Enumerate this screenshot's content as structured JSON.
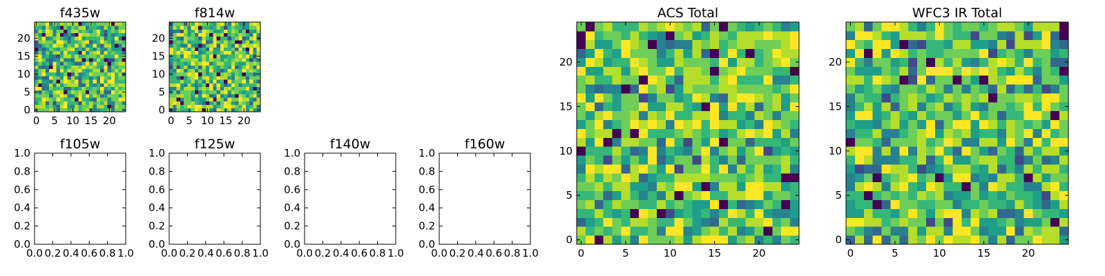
{
  "colors": {
    "background": "#ffffff",
    "axes": "#000000",
    "colormap": "viridis"
  },
  "chart_data": [
    {
      "id": "f435w",
      "type": "heatmap",
      "title": "f435w",
      "grid_size": 25,
      "xlim": [
        -0.5,
        24.5
      ],
      "ylim": [
        -0.5,
        24.5
      ],
      "xticks": [
        0,
        5,
        10,
        15,
        20
      ],
      "yticks": [
        0,
        5,
        10,
        15,
        20
      ],
      "xtick_labels": [
        "0",
        "5",
        "10",
        "15",
        "20"
      ],
      "ytick_labels": [
        "0",
        "5",
        "10",
        "15",
        "20"
      ],
      "empty": false,
      "seed": 11
    },
    {
      "id": "f814w",
      "type": "heatmap",
      "title": "f814w",
      "grid_size": 25,
      "xlim": [
        -0.5,
        24.5
      ],
      "ylim": [
        -0.5,
        24.5
      ],
      "xticks": [
        0,
        5,
        10,
        15,
        20
      ],
      "yticks": [
        0,
        5,
        10,
        15,
        20
      ],
      "xtick_labels": [
        "0",
        "5",
        "10",
        "15",
        "20"
      ],
      "ytick_labels": [
        "0",
        "5",
        "10",
        "15",
        "20"
      ],
      "empty": false,
      "seed": 23
    },
    {
      "id": "f105w",
      "type": "heatmap",
      "title": "f105w",
      "xlim": [
        0,
        1
      ],
      "ylim": [
        0,
        1
      ],
      "xticks": [
        0,
        0.2,
        0.4,
        0.6,
        0.8,
        1.0
      ],
      "yticks": [
        0,
        0.2,
        0.4,
        0.6,
        0.8,
        1.0
      ],
      "xtick_labels": [
        "0.0",
        "0.2",
        "0.4",
        "0.6",
        "0.8",
        "1.0"
      ],
      "ytick_labels": [
        "0.0",
        "0.2",
        "0.4",
        "0.6",
        "0.8",
        "1.0"
      ],
      "empty": true
    },
    {
      "id": "f125w",
      "type": "heatmap",
      "title": "f125w",
      "xlim": [
        0,
        1
      ],
      "ylim": [
        0,
        1
      ],
      "xticks": [
        0,
        0.2,
        0.4,
        0.6,
        0.8,
        1.0
      ],
      "yticks": [
        0,
        0.2,
        0.4,
        0.6,
        0.8,
        1.0
      ],
      "xtick_labels": [
        "0.0",
        "0.2",
        "0.4",
        "0.6",
        "0.8",
        "1.0"
      ],
      "ytick_labels": [
        "0.0",
        "0.2",
        "0.4",
        "0.6",
        "0.8",
        "1.0"
      ],
      "empty": true
    },
    {
      "id": "f140w",
      "type": "heatmap",
      "title": "f140w",
      "xlim": [
        0,
        1
      ],
      "ylim": [
        0,
        1
      ],
      "xticks": [
        0,
        0.2,
        0.4,
        0.6,
        0.8,
        1.0
      ],
      "yticks": [
        0,
        0.2,
        0.4,
        0.6,
        0.8,
        1.0
      ],
      "xtick_labels": [
        "0.0",
        "0.2",
        "0.4",
        "0.6",
        "0.8",
        "1.0"
      ],
      "ytick_labels": [
        "0.0",
        "0.2",
        "0.4",
        "0.6",
        "0.8",
        "1.0"
      ],
      "empty": true
    },
    {
      "id": "f160w",
      "type": "heatmap",
      "title": "f160w",
      "xlim": [
        0,
        1
      ],
      "ylim": [
        0,
        1
      ],
      "xticks": [
        0,
        0.2,
        0.4,
        0.6,
        0.8,
        1.0
      ],
      "yticks": [
        0,
        0.2,
        0.4,
        0.6,
        0.8,
        1.0
      ],
      "xtick_labels": [
        "0.0",
        "0.2",
        "0.4",
        "0.6",
        "0.8",
        "1.0"
      ],
      "ytick_labels": [
        "0.0",
        "0.2",
        "0.4",
        "0.6",
        "0.8",
        "1.0"
      ],
      "empty": true
    },
    {
      "id": "acs_total",
      "type": "heatmap",
      "title": "ACS Total",
      "grid_size": 25,
      "xlim": [
        -0.5,
        24.5
      ],
      "ylim": [
        -0.5,
        24.5
      ],
      "xticks": [
        0,
        5,
        10,
        15,
        20
      ],
      "yticks": [
        0,
        5,
        10,
        15,
        20
      ],
      "xtick_labels": [
        "0",
        "5",
        "10",
        "15",
        "20"
      ],
      "ytick_labels": [
        "0",
        "5",
        "10",
        "15",
        "20"
      ],
      "empty": false,
      "seed": 37
    },
    {
      "id": "wfc3_ir_total",
      "type": "heatmap",
      "title": "WFC3 IR Total",
      "grid_size": 25,
      "xlim": [
        -0.5,
        24.5
      ],
      "ylim": [
        -0.5,
        24.5
      ],
      "xticks": [
        0,
        5,
        10,
        15,
        20
      ],
      "yticks": [
        0,
        5,
        10,
        15,
        20
      ],
      "xtick_labels": [
        "0",
        "5",
        "10",
        "15",
        "20"
      ],
      "ytick_labels": [
        "0",
        "5",
        "10",
        "15",
        "20"
      ],
      "empty": false,
      "seed": 53
    }
  ]
}
